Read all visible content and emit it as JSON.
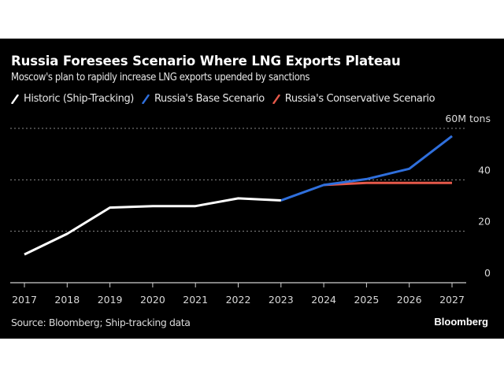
{
  "header": {
    "title": "Russia Foresees Scenario Where LNG Exports Plateau",
    "subtitle": "Moscow's plan to rapidly increase LNG exports upended by sanctions"
  },
  "legend": [
    {
      "label": "Historic (Ship-Tracking)",
      "color": "#ffffff",
      "icon": "slash-line-icon"
    },
    {
      "label": "Russia's Base Scenario",
      "color": "#2f6fdc",
      "icon": "slash-line-icon"
    },
    {
      "label": "Russia's Conservative Scenario",
      "color": "#e4594a",
      "icon": "slash-line-icon"
    }
  ],
  "footer": {
    "source": "Source: Bloomberg; Ship-tracking data",
    "brand": "Bloomberg"
  },
  "chart_data": {
    "type": "line",
    "title": "Russia Foresees Scenario Where LNG Exports Plateau",
    "subtitle": "Moscow's plan to rapidly increase LNG exports upended by sanctions",
    "xlabel": "",
    "ylabel": "M tons",
    "x": [
      "2017",
      "2018",
      "2019",
      "2020",
      "2021",
      "2022",
      "2023",
      "2024",
      "2025",
      "2026",
      "2027"
    ],
    "ylim": [
      0,
      60
    ],
    "yticks": [
      0,
      20,
      40,
      60
    ],
    "ytick_labels": [
      "0",
      "20",
      "40",
      "60M tons"
    ],
    "yaxis_position": "right",
    "grid": true,
    "legend_position": "top-left",
    "series": [
      {
        "name": "Historic (Ship-Tracking)",
        "color": "#ffffff",
        "points": [
          {
            "x": "2017",
            "y": 11.0
          },
          {
            "x": "2018",
            "y": 19.0
          },
          {
            "x": "2019",
            "y": 29.2
          },
          {
            "x": "2020",
            "y": 29.8
          },
          {
            "x": "2021",
            "y": 29.8
          },
          {
            "x": "2022",
            "y": 32.8
          },
          {
            "x": "2023",
            "y": 32.0
          }
        ]
      },
      {
        "name": "Russia's Base Scenario",
        "color": "#2f6fdc",
        "points": [
          {
            "x": "2023",
            "y": 32.0
          },
          {
            "x": "2024",
            "y": 38.0
          },
          {
            "x": "2025",
            "y": 40.3
          },
          {
            "x": "2026",
            "y": 44.3
          },
          {
            "x": "2027",
            "y": 57.0
          }
        ]
      },
      {
        "name": "Russia's Conservative Scenario",
        "color": "#e4594a",
        "points": [
          {
            "x": "2024",
            "y": 38.0
          },
          {
            "x": "2025",
            "y": 38.8
          },
          {
            "x": "2026",
            "y": 38.8
          },
          {
            "x": "2027",
            "y": 38.8
          }
        ]
      }
    ]
  }
}
